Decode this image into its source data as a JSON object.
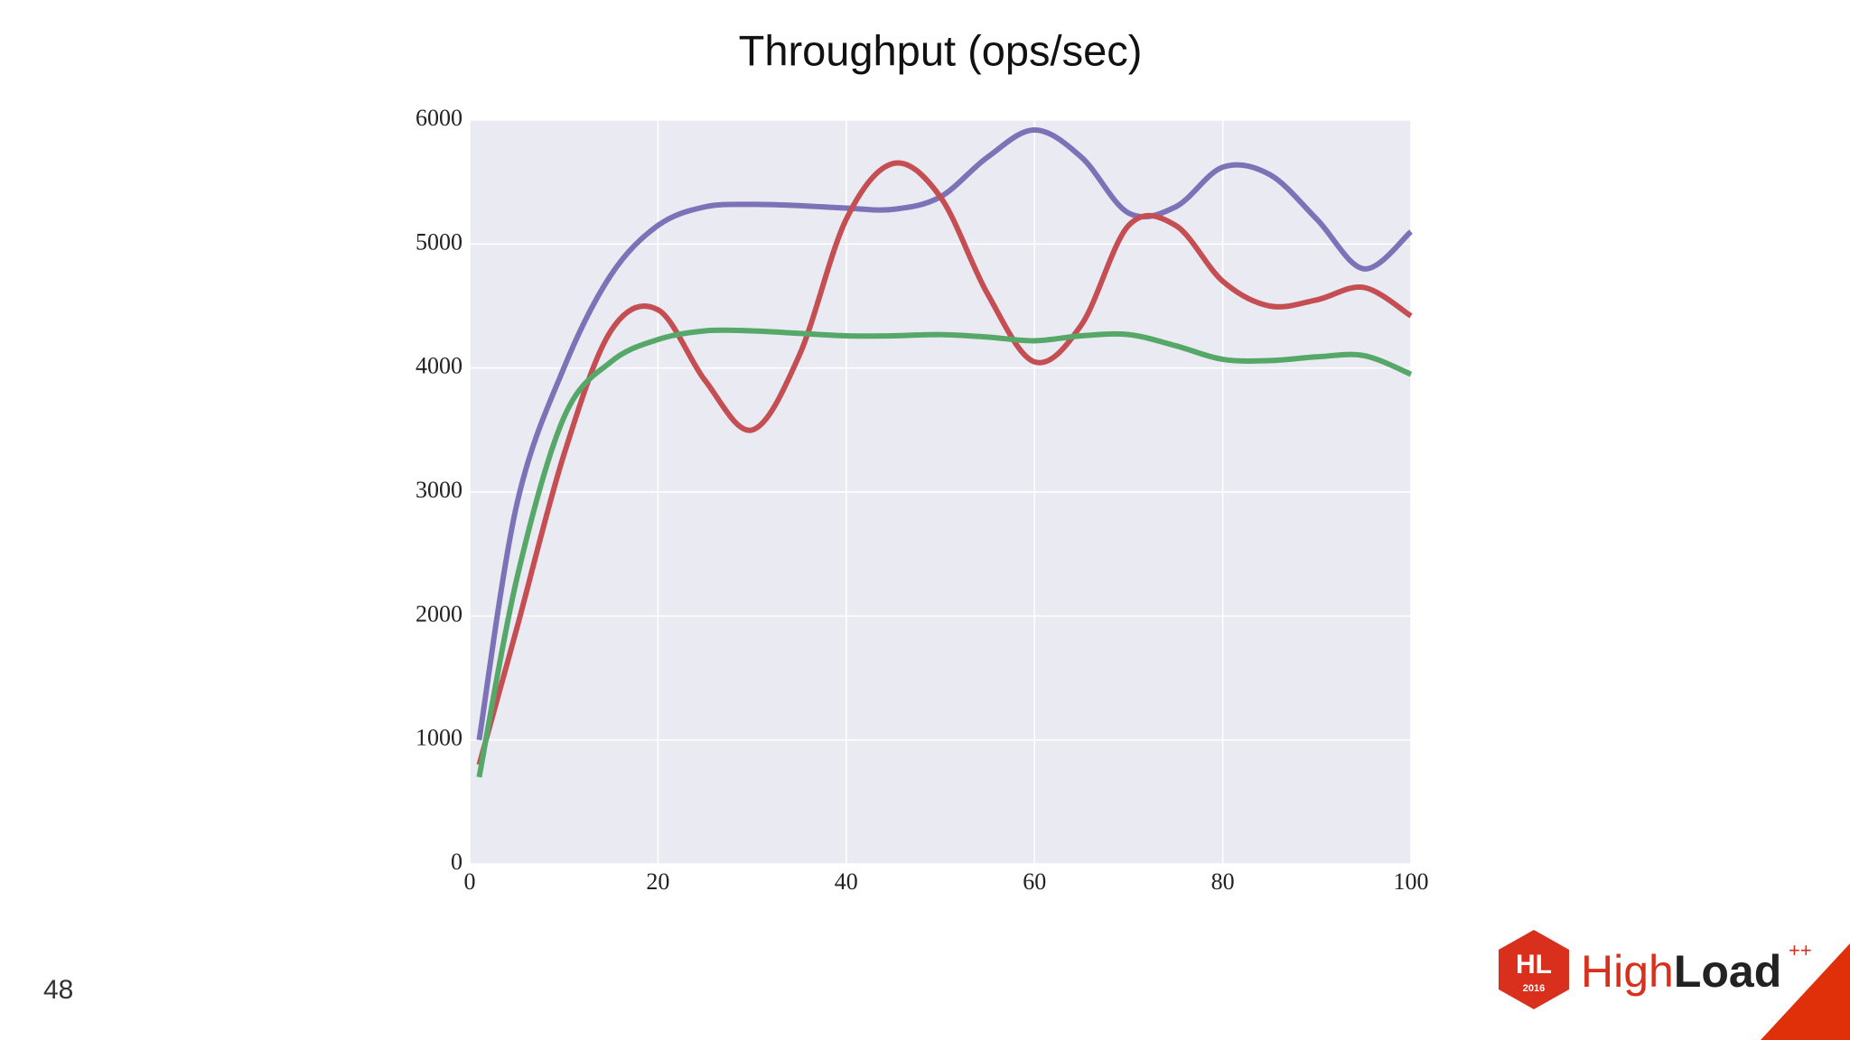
{
  "chart_data": {
    "type": "line",
    "title": "Throughput (ops/sec)",
    "x": [
      1,
      5,
      10,
      15,
      20,
      25,
      30,
      35,
      40,
      45,
      50,
      55,
      60,
      65,
      70,
      75,
      80,
      85,
      90,
      95,
      100
    ],
    "series": [
      {
        "color": "#7d72b8",
        "values": [
          1000,
          2900,
          4000,
          4750,
          5150,
          5300,
          5320,
          5310,
          5290,
          5280,
          5380,
          5700,
          5920,
          5700,
          5250,
          5300,
          5620,
          5560,
          5200,
          4800,
          5100
        ]
      },
      {
        "color": "#c44e52",
        "values": [
          800,
          1900,
          3300,
          4300,
          4470,
          3900,
          3500,
          4100,
          5200,
          5650,
          5380,
          4600,
          4050,
          4350,
          5150,
          5150,
          4700,
          4500,
          4550,
          4650,
          4420
        ]
      },
      {
        "color": "#55a868",
        "values": [
          700,
          2300,
          3600,
          4050,
          4230,
          4300,
          4300,
          4280,
          4260,
          4260,
          4270,
          4250,
          4220,
          4260,
          4270,
          4180,
          4070,
          4060,
          4090,
          4100,
          3950
        ]
      }
    ],
    "xlim": [
      0,
      100
    ],
    "xticks": [
      0,
      20,
      40,
      60,
      80,
      100
    ],
    "ylim": [
      0,
      6000
    ],
    "yticks": [
      0,
      1000,
      2000,
      3000,
      4000,
      5000,
      6000
    ],
    "grid": true
  },
  "slide": {
    "page_number": "48",
    "logo": {
      "badge": "HL",
      "year": "2016",
      "high": "High",
      "load": "Load",
      "plus": "++"
    }
  }
}
